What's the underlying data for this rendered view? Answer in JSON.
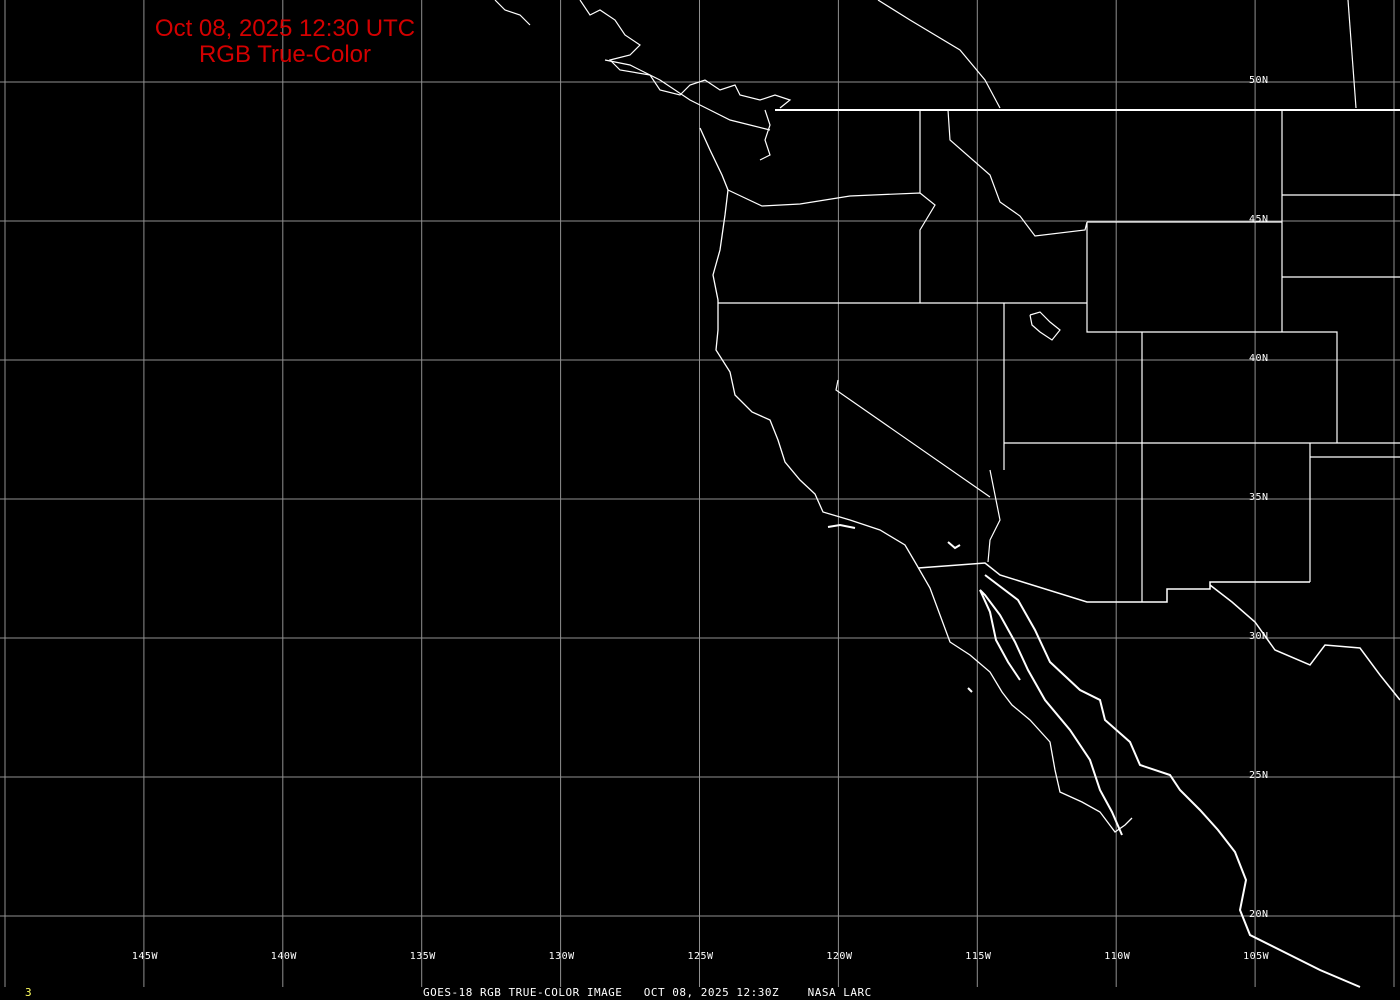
{
  "title": {
    "line1": "Oct 08, 2025 12:30 UTC",
    "line2": "RGB True-Color"
  },
  "footer": "GOES-18 RGB TRUE-COLOR IMAGE   OCT 08, 2025 12:30Z    NASA LARC",
  "frame_number": "3",
  "longitude_labels": [
    "145W",
    "140W",
    "135W",
    "130W",
    "125W",
    "120W",
    "115W",
    "110W",
    "105W"
  ],
  "latitude_labels": [
    "50N",
    "45N",
    "40N",
    "35N",
    "30N",
    "25N",
    "20N"
  ],
  "colors": {
    "background": "#000000",
    "title": "#d40000",
    "grid": "#909090",
    "borders": "#ffffff",
    "frame_number": "#ffff60"
  }
}
